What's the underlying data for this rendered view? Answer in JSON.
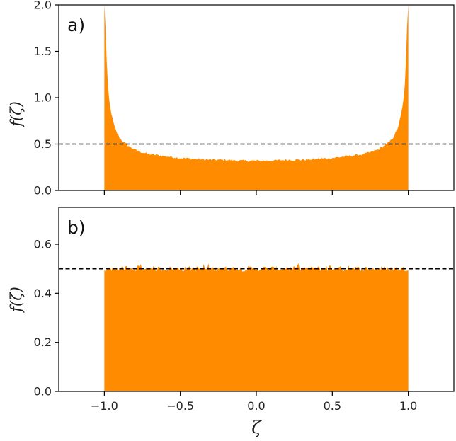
{
  "chart_data": [
    {
      "type": "area",
      "panel_label": "a)",
      "xlabel": "",
      "ylabel": "f(ζ)",
      "xlim": [
        -1.3,
        1.3
      ],
      "ylim": [
        0.0,
        2.0
      ],
      "xticks": [
        -1.0,
        -0.5,
        0.0,
        0.5,
        1.0
      ],
      "yticks": [
        0.0,
        0.5,
        1.0,
        1.5,
        2.0
      ],
      "ytick_labels": [
        "0.0",
        "0.5",
        "1.0",
        "1.5",
        "2.0"
      ],
      "reference_line": {
        "y": 0.5,
        "style": "dashed",
        "color": "#000000"
      },
      "fill_color": "#ff8c00",
      "series": [
        {
          "x": [
            -1.0,
            -0.995,
            -0.99,
            -0.98,
            -0.97,
            -0.96,
            -0.95,
            -0.94,
            -0.93,
            -0.92,
            -0.9,
            -0.88,
            -0.85,
            -0.82,
            -0.8,
            -0.75,
            -0.7,
            -0.65,
            -0.6,
            -0.5,
            -0.4,
            -0.3,
            -0.2,
            -0.1,
            0.0,
            0.1,
            0.2,
            0.3,
            0.4,
            0.5,
            0.6,
            0.65,
            0.7,
            0.75,
            0.8,
            0.82,
            0.85,
            0.88,
            0.9,
            0.92,
            0.93,
            0.94,
            0.95,
            0.96,
            0.97,
            0.98,
            0.99,
            0.995,
            1.0
          ],
          "values": [
            2.0,
            1.95,
            1.6,
            1.2,
            1.0,
            0.88,
            0.8,
            0.73,
            0.67,
            0.63,
            0.57,
            0.53,
            0.49,
            0.46,
            0.44,
            0.41,
            0.39,
            0.38,
            0.37,
            0.35,
            0.34,
            0.33,
            0.33,
            0.32,
            0.32,
            0.32,
            0.33,
            0.33,
            0.34,
            0.35,
            0.37,
            0.38,
            0.39,
            0.41,
            0.44,
            0.46,
            0.49,
            0.53,
            0.57,
            0.63,
            0.67,
            0.73,
            0.8,
            0.88,
            1.0,
            1.2,
            1.6,
            1.95,
            2.0
          ]
        }
      ]
    },
    {
      "type": "area",
      "panel_label": "b)",
      "xlabel": "ζ",
      "ylabel": "f(ζ)",
      "xlim": [
        -1.3,
        1.3
      ],
      "ylim": [
        0.0,
        0.75
      ],
      "xticks": [
        -1.0,
        -0.5,
        0.0,
        0.5,
        1.0
      ],
      "xtick_labels": [
        "−1.0",
        "−0.5",
        "0.0",
        "0.5",
        "1.0"
      ],
      "yticks": [
        0.0,
        0.2,
        0.4,
        0.6
      ],
      "ytick_labels": [
        "0.0",
        "0.2",
        "0.4",
        "0.6"
      ],
      "reference_line": {
        "y": 0.5,
        "style": "dashed",
        "color": "#000000"
      },
      "fill_color": "#ff8c00",
      "series": [
        {
          "x": [
            -1.0,
            1.0
          ],
          "values": [
            0.5,
            0.5
          ],
          "noise": "small fluctuations of about ±0.02 around 0.5"
        }
      ]
    }
  ]
}
